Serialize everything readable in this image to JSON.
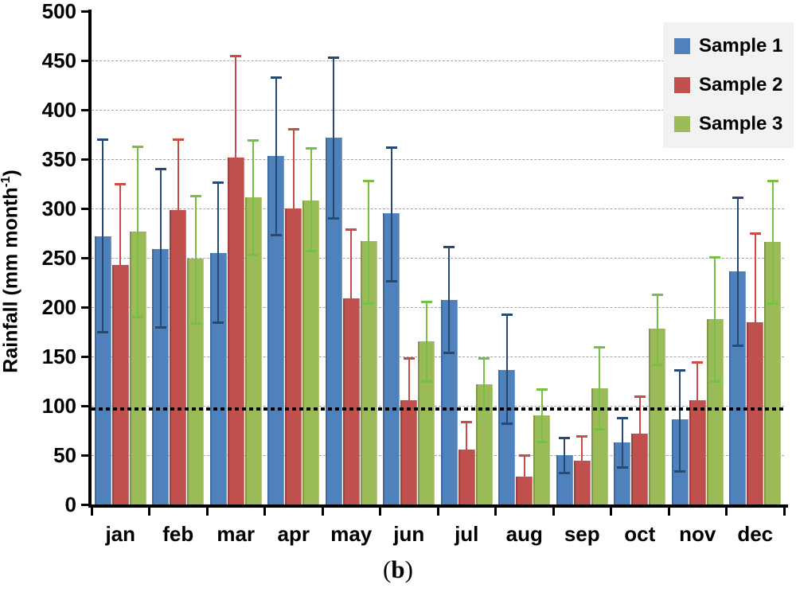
{
  "figure": {
    "caption_open": "(",
    "caption_letter": "b",
    "caption_close": ")"
  },
  "y_axis": {
    "title_main": "Rainfall (mm month",
    "title_sup": "-1",
    "title_close": ")",
    "tick_values": [
      0,
      50,
      100,
      150,
      200,
      250,
      300,
      350,
      400,
      450,
      500
    ]
  },
  "legend": {
    "items": [
      {
        "label": "Sample 1",
        "color": "#4F81BD"
      },
      {
        "label": "Sample 2",
        "color": "#C0504D"
      },
      {
        "label": "Sample 3",
        "color": "#9BBB59"
      }
    ]
  },
  "chart_data": {
    "type": "bar",
    "title": "",
    "xlabel": "",
    "ylabel": "Rainfall (mm month-1)",
    "ylim": [
      0,
      500
    ],
    "grid": "horizontal dashed every 50",
    "legend_position": "top-right",
    "reference_line": {
      "value": 97,
      "style": "dotted",
      "color": "#000000"
    },
    "categories": [
      "jan",
      "feb",
      "mar",
      "apr",
      "may",
      "jun",
      "jul",
      "aug",
      "sep",
      "oct",
      "nov",
      "dec"
    ],
    "series": [
      {
        "name": "Sample 1",
        "color": "#4F81BD",
        "error_color": "#264A73",
        "values": [
          272,
          259,
          255,
          353,
          372,
          295,
          207,
          136,
          50,
          63,
          86,
          236
        ],
        "error_upper": [
          370,
          340,
          327,
          433,
          453,
          362,
          261,
          193,
          68,
          88,
          136,
          311
        ],
        "error_lower": [
          175,
          180,
          185,
          273,
          290,
          227,
          154,
          82,
          32,
          38,
          34,
          161
        ]
      },
      {
        "name": "Sample 2",
        "color": "#C0504D",
        "error_color": "#CB4C47",
        "values": [
          243,
          298,
          352,
          300,
          209,
          106,
          56,
          28,
          44,
          72,
          106,
          185
        ],
        "error_upper": [
          325,
          370,
          455,
          381,
          279,
          148,
          84,
          50,
          69,
          110,
          144,
          275
        ],
        "error_lower": [
          null,
          null,
          null,
          null,
          null,
          null,
          null,
          null,
          null,
          null,
          null,
          null
        ]
      },
      {
        "name": "Sample 3",
        "color": "#9BBB59",
        "error_color": "#77C043",
        "values": [
          277,
          249,
          311,
          308,
          267,
          165,
          122,
          90,
          118,
          178,
          188,
          266
        ],
        "error_upper": [
          363,
          313,
          369,
          361,
          328,
          206,
          148,
          117,
          160,
          213,
          251,
          328
        ],
        "error_lower": [
          190,
          184,
          253,
          257,
          204,
          125,
          96,
          64,
          77,
          142,
          125,
          204
        ]
      }
    ]
  }
}
